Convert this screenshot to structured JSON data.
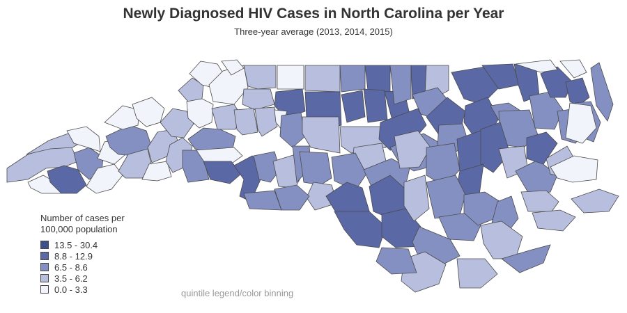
{
  "header": {
    "title": "Newly Diagnosed HIV Cases in North Carolina per Year",
    "subtitle": "Three-year average (2013, 2014, 2015)"
  },
  "legend": {
    "title": "Number of cases per\n100,000 population",
    "bins": [
      {
        "label": "13.5 - 30.4",
        "color": "#3f4f8f"
      },
      {
        "label": "8.8 - 12.9",
        "color": "#5a68a6"
      },
      {
        "label": "6.5 - 8.6",
        "color": "#8590c2"
      },
      {
        "label": "3.5 - 6.2",
        "color": "#b8bedd"
      },
      {
        "label": "0.0 - 3.3",
        "color": "#f2f4fb"
      }
    ]
  },
  "note": "quintile legend/color binning"
}
